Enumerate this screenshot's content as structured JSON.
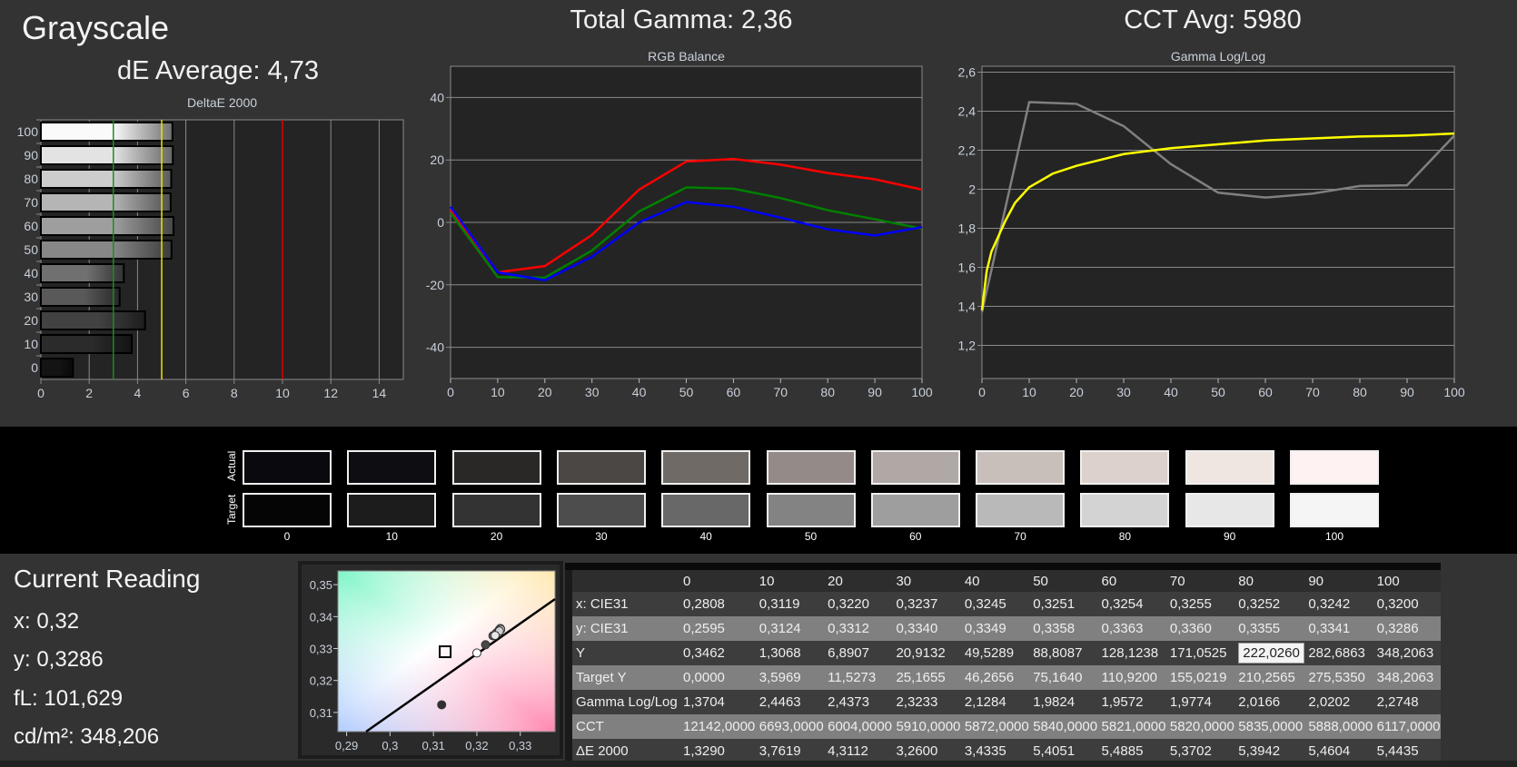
{
  "header": {
    "title": "Grayscale",
    "de_average": "dE Average: 4,73",
    "total_gamma": "Total Gamma: 2,36",
    "cct_avg": "CCT Avg: 5980"
  },
  "colors": {
    "red": "#ff0000",
    "green": "#008000",
    "blue": "#0000ff",
    "gamma_measured": "#808080",
    "gamma_target": "#ffff00",
    "ref_good": "#1f8a1f",
    "ref_ok": "#e6e600",
    "ref_bad": "#e00000"
  },
  "chart_data": [
    {
      "type": "bar",
      "orientation": "horizontal",
      "title": "DeltaE 2000",
      "categories": [
        "0",
        "10",
        "20",
        "30",
        "40",
        "50",
        "60",
        "70",
        "80",
        "90",
        "100"
      ],
      "values": [
        1.329,
        3.7619,
        4.3112,
        3.26,
        3.4335,
        5.4051,
        5.4885,
        5.3702,
        5.3942,
        5.4604,
        5.4435
      ],
      "xlim": [
        0,
        15
      ],
      "xticks": [
        "0",
        "2",
        "4",
        "6",
        "8",
        "10",
        "12",
        "14"
      ],
      "reference_lines": [
        3,
        5,
        10
      ],
      "grid": true
    },
    {
      "type": "line",
      "title": "RGB Balance",
      "x": [
        0,
        10,
        20,
        30,
        40,
        50,
        60,
        70,
        80,
        90,
        100
      ],
      "xlim": [
        0,
        100
      ],
      "ylim": [
        -50,
        50
      ],
      "xticks": [
        "0",
        "10",
        "20",
        "30",
        "40",
        "50",
        "60",
        "70",
        "80",
        "90",
        "100"
      ],
      "yticks": [
        "40",
        "20",
        "0",
        "-20",
        "-40"
      ],
      "grid": true,
      "series": [
        {
          "color": "red",
          "values": [
            4,
            -16,
            -14,
            -4,
            10.5,
            19.5,
            20.3,
            18.5,
            15.8,
            13.8,
            10.5
          ]
        },
        {
          "color": "green",
          "values": [
            3,
            -17.5,
            -17.7,
            -9,
            3.5,
            11.2,
            10.8,
            7.8,
            3.9,
            1,
            -2
          ]
        },
        {
          "color": "blue",
          "values": [
            5,
            -16,
            -18.5,
            -11,
            0,
            6.5,
            5,
            1.5,
            -2.2,
            -4.2,
            -1.5
          ]
        }
      ]
    },
    {
      "type": "line",
      "title": "Gamma Log/Log",
      "xlim": [
        0,
        100
      ],
      "ylim": [
        1.03,
        2.63
      ],
      "xticks": [
        "0",
        "10",
        "20",
        "30",
        "40",
        "50",
        "60",
        "70",
        "80",
        "90",
        "100"
      ],
      "yticks": [
        "2,6",
        "2,4",
        "2,2",
        "2",
        "1,8",
        "1,6",
        "1,4",
        "1,2"
      ],
      "grid": true,
      "series": [
        {
          "color": "gamma_measured",
          "x": [
            0,
            10,
            20,
            30,
            40,
            50,
            60,
            70,
            80,
            90,
            100
          ],
          "values": [
            1.3704,
            2.4463,
            2.4373,
            2.3233,
            2.1284,
            1.9824,
            1.9572,
            1.9774,
            2.0166,
            2.0202,
            2.2748
          ]
        },
        {
          "color": "gamma_target",
          "x": [
            0,
            1,
            2,
            5,
            7,
            10,
            15,
            20,
            30,
            40,
            50,
            60,
            70,
            80,
            90,
            100
          ],
          "values": [
            1.38,
            1.58,
            1.68,
            1.84,
            1.93,
            2.01,
            2.08,
            2.12,
            2.18,
            2.21,
            2.23,
            2.25,
            2.26,
            2.27,
            2.275,
            2.285
          ]
        }
      ]
    },
    {
      "type": "scatter",
      "title": "",
      "xlim": [
        0.288,
        0.338
      ],
      "ylim": [
        0.304,
        0.3543
      ],
      "xticks": [
        "0,29",
        "0,3",
        "0,31",
        "0,32",
        "0,33"
      ],
      "yticks": [
        "0,35",
        "0,34",
        "0,33",
        "0,32",
        "0,31"
      ],
      "target_whitepoint": [
        0.3127,
        0.329
      ],
      "planckian_locus": [
        [
          0.2945,
          0.304
        ],
        [
          0.338,
          0.3455
        ]
      ],
      "points": [
        {
          "level": 10,
          "x": 0.3119,
          "y": 0.3124
        },
        {
          "level": 20,
          "x": 0.322,
          "y": 0.3312
        },
        {
          "level": 30,
          "x": 0.3237,
          "y": 0.334
        },
        {
          "level": 40,
          "x": 0.3245,
          "y": 0.3349
        },
        {
          "level": 50,
          "x": 0.3251,
          "y": 0.3358
        },
        {
          "level": 60,
          "x": 0.3254,
          "y": 0.3363
        },
        {
          "level": 70,
          "x": 0.3255,
          "y": 0.336
        },
        {
          "level": 80,
          "x": 0.3252,
          "y": 0.3355
        },
        {
          "level": 90,
          "x": 0.3242,
          "y": 0.3341
        },
        {
          "level": 100,
          "x": 0.32,
          "y": 0.3286
        }
      ]
    }
  ],
  "swatches": {
    "actual_label": "Actual",
    "target_label": "Target",
    "items": [
      {
        "label": "0",
        "actual": "#0a0a0e",
        "target": "#050505"
      },
      {
        "label": "10",
        "actual": "#0e0e12",
        "target": "#1c1c1c"
      },
      {
        "label": "20",
        "actual": "#2a2826",
        "target": "#333333"
      },
      {
        "label": "30",
        "actual": "#4b4744",
        "target": "#4d4d4d"
      },
      {
        "label": "40",
        "actual": "#6f6a66",
        "target": "#686868"
      },
      {
        "label": "50",
        "actual": "#948b88",
        "target": "#838383"
      },
      {
        "label": "60",
        "actual": "#b0a8a4",
        "target": "#9e9e9e"
      },
      {
        "label": "70",
        "actual": "#c8bfbb",
        "target": "#b9b9b9"
      },
      {
        "label": "80",
        "actual": "#dcd1cd",
        "target": "#d3d3d3"
      },
      {
        "label": "90",
        "actual": "#efe5e1",
        "target": "#e7e7e7"
      },
      {
        "label": "100",
        "actual": "#fff2f2",
        "target": "#f5f5f5"
      }
    ]
  },
  "reading": {
    "title": "Current Reading",
    "x": "x: 0,32",
    "y": "y: 0,3286",
    "fl": "fL: 101,629",
    "cdm2": "cd/m²: 348,206"
  },
  "table": {
    "columns": [
      "",
      "0",
      "10",
      "20",
      "30",
      "40",
      "50",
      "60",
      "70",
      "80",
      "90",
      "100"
    ],
    "rows": [
      [
        "x: CIE31",
        "0,2808",
        "0,3119",
        "0,3220",
        "0,3237",
        "0,3245",
        "0,3251",
        "0,3254",
        "0,3255",
        "0,3252",
        "0,3242",
        "0,3200"
      ],
      [
        "y: CIE31",
        "0,2595",
        "0,3124",
        "0,3312",
        "0,3340",
        "0,3349",
        "0,3358",
        "0,3363",
        "0,3360",
        "0,3355",
        "0,3341",
        "0,3286"
      ],
      [
        "Y",
        "0,3462",
        "1,3068",
        "6,8907",
        "20,9132",
        "49,5289",
        "88,8087",
        "128,1238",
        "171,0525",
        "222,0260",
        "282,6863",
        "348,2063"
      ],
      [
        "Target Y",
        "0,0000",
        "3,5969",
        "11,5273",
        "25,1655",
        "46,2656",
        "75,1640",
        "110,9200",
        "155,0219",
        "210,2565",
        "275,5350",
        "348,2063"
      ],
      [
        "Gamma Log/Log",
        "1,3704",
        "2,4463",
        "2,4373",
        "2,3233",
        "2,1284",
        "1,9824",
        "1,9572",
        "1,9774",
        "2,0166",
        "2,0202",
        "2,2748"
      ],
      [
        "CCT",
        "12142,0000",
        "6693,0000",
        "6004,0000",
        "5910,0000",
        "5872,0000",
        "5840,0000",
        "5821,0000",
        "5820,0000",
        "5835,0000",
        "5888,0000",
        "6117,0000"
      ],
      [
        "ΔE 2000",
        "1,3290",
        "3,7619",
        "4,3112",
        "3,2600",
        "3,4335",
        "5,4051",
        "5,4885",
        "5,3702",
        "5,3942",
        "5,4604",
        "5,4435"
      ]
    ]
  }
}
